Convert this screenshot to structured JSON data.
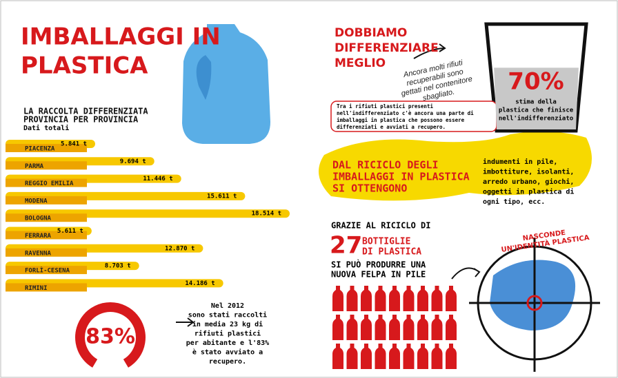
{
  "title": [
    "IMBALLAGGI IN",
    "PLASTICA"
  ],
  "chart_data": {
    "type": "bar",
    "orientation": "horizontal",
    "title": [
      "LA RACCOLTA DIFFERENZIATA",
      "PROVINCIA PER PROVINCIA"
    ],
    "subtitle": "Dati totali",
    "categories": [
      "PIACENZA",
      "PARMA",
      "REGGIO EMILIA",
      "MODENA",
      "BOLOGNA",
      "FERRARA",
      "RAVENNA",
      "FORLÌ-CESENA",
      "RIMINI"
    ],
    "values": [
      5841,
      9694,
      11446,
      15611,
      18514,
      5611,
      12870,
      8703,
      14186
    ],
    "value_labels": [
      "5.841 t",
      "9.694 t",
      "11.446 t",
      "15.611 t",
      "18.514 t",
      "5.611 t",
      "12.870 t",
      "8.703 t",
      "14.186 t"
    ],
    "colors": {
      "bar": "#f7c800",
      "label": "#eda400"
    }
  },
  "recovery": {
    "value": 83,
    "value_label": "83%",
    "color": "#d7191c",
    "note": [
      "Nel 2012",
      "sono stati raccolti",
      "in media 23 kg di",
      "rifiuti plastici",
      "per abitante e l'83%",
      "è stato avviato a",
      "recupero."
    ]
  },
  "bin_section": {
    "title": [
      "DOBBIAMO",
      "DIFFERENZIARE",
      "MEGLIO"
    ],
    "handwritten": [
      "Ancora molti rifiuti",
      "recuperabili sono",
      "gettati nel contenitore",
      "sbagliato."
    ],
    "box_text": [
      "Tra i rifiuti plastici presenti",
      "nell'indifferenziato c'è ancora una parte di",
      "imballaggi in plastica che possono essere",
      "differenziati e avviati a recupero."
    ],
    "value": 70,
    "value_label": "70%",
    "caption": [
      "stima della",
      "plastica che finisce",
      "nell'indifferenziato"
    ]
  },
  "recycling": {
    "title": [
      "DAL RICICLO DEGLI",
      "IMBALLAGGI IN PLASTICA",
      "SI OTTENGONO"
    ],
    "products": [
      "indumenti in pile,",
      "imbottiture, isolanti,",
      "arredo urbano, giochi,",
      "oggetti in plastica di",
      "ogni tipo, ecc."
    ]
  },
  "fleece": {
    "intro": "GRAZIE AL RICICLO DI",
    "bottles": 27,
    "bottles_label": [
      "BOTTIGLIE",
      "DI PLASTICA"
    ],
    "result": [
      "SI PUÒ PRODURRE UNA",
      "NUOVA FELPA IN PILE"
    ],
    "tagline": [
      "NASCONDE",
      "UN'IDENTITÀ PLASTICA"
    ]
  }
}
